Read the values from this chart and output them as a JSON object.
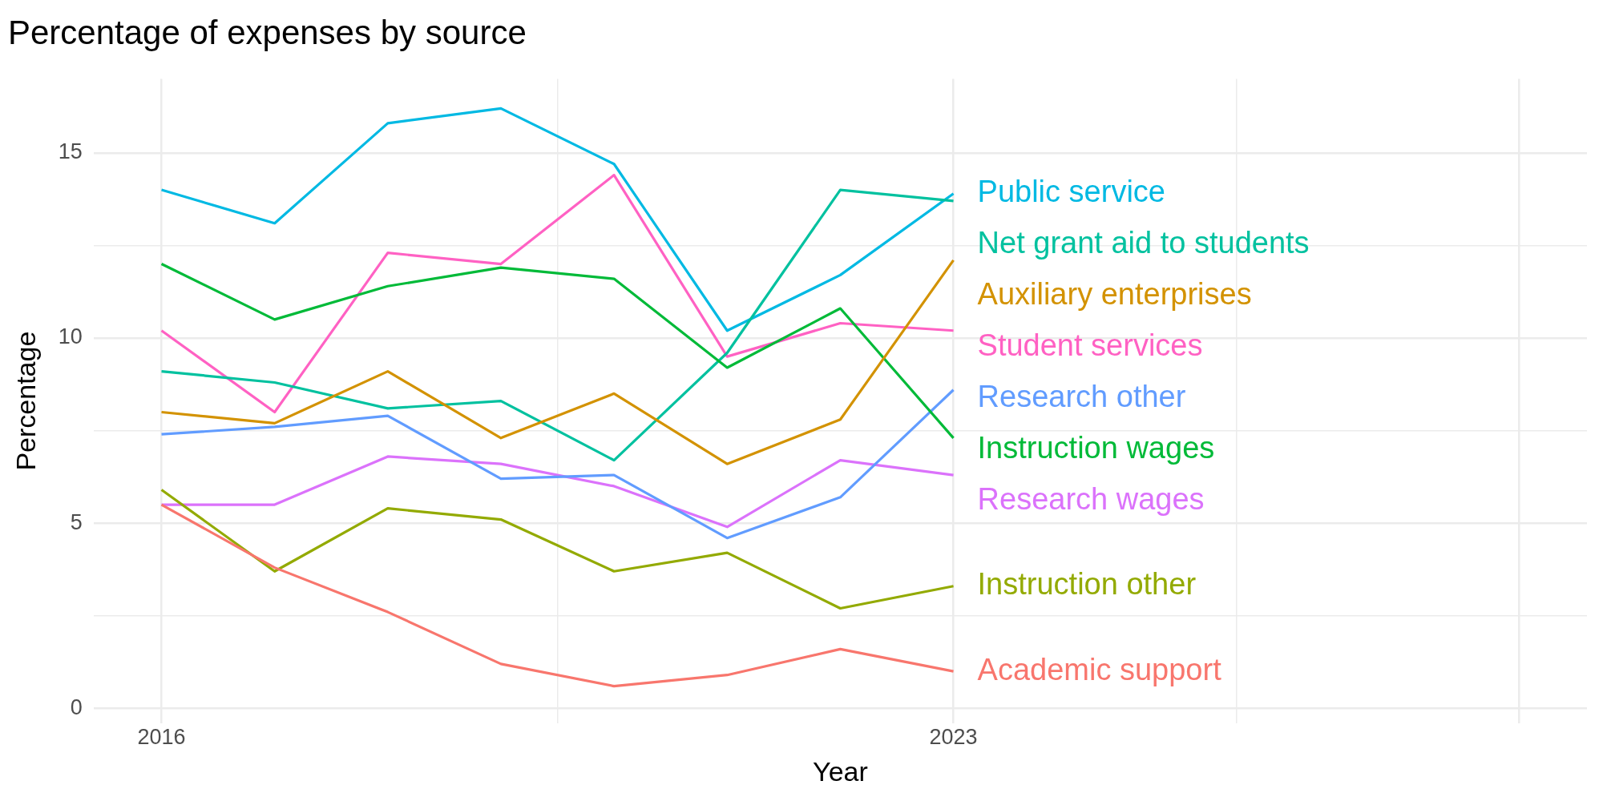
{
  "chart_data": {
    "type": "line",
    "title": "Percentage of expenses by source",
    "xlabel": "Year",
    "ylabel": "Percentage",
    "x": [
      2016,
      2017,
      2018,
      2019,
      2020,
      2021,
      2022,
      2023
    ],
    "series": [
      {
        "name": "Academic support",
        "color": "#f8766d",
        "values": [
          5.5,
          3.8,
          2.6,
          1.2,
          0.6,
          0.9,
          1.6,
          1.0
        ]
      },
      {
        "name": "Auxiliary enterprises",
        "color": "#d39200",
        "values": [
          8.0,
          7.7,
          9.1,
          7.3,
          8.5,
          6.6,
          7.8,
          12.1
        ]
      },
      {
        "name": "Instruction other",
        "color": "#93aa00",
        "values": [
          5.9,
          3.7,
          5.4,
          5.1,
          3.7,
          4.2,
          2.7,
          3.3
        ]
      },
      {
        "name": "Instruction wages",
        "color": "#00ba38",
        "values": [
          12.0,
          10.5,
          11.4,
          11.9,
          11.6,
          9.2,
          10.8,
          7.3
        ]
      },
      {
        "name": "Net grant aid to students",
        "color": "#00c19f",
        "values": [
          9.1,
          8.8,
          8.1,
          8.3,
          6.7,
          9.6,
          14.0,
          13.7
        ]
      },
      {
        "name": "Public service",
        "color": "#00b9e3",
        "values": [
          14.0,
          13.1,
          15.8,
          16.2,
          14.7,
          10.2,
          11.7,
          13.9
        ]
      },
      {
        "name": "Research other",
        "color": "#619cff",
        "values": [
          7.4,
          7.6,
          7.9,
          6.2,
          6.3,
          4.6,
          5.7,
          8.6
        ]
      },
      {
        "name": "Research wages",
        "color": "#db72fb",
        "values": [
          5.5,
          5.5,
          6.8,
          6.6,
          6.0,
          4.9,
          6.7,
          6.3
        ]
      },
      {
        "name": "Student services",
        "color": "#ff61c3",
        "values": [
          10.2,
          8.0,
          12.3,
          12.0,
          14.4,
          9.5,
          10.4,
          10.2
        ]
      }
    ],
    "xlim": [
      2015.4,
      2028.6
    ],
    "xticks": [
      2016,
      {
        "value": 2019.5,
        "label": null
      },
      2023,
      {
        "value": 2025.5,
        "label": null
      },
      {
        "value": 2028,
        "label": null
      }
    ],
    "ylim": [
      -0.4,
      17
    ],
    "yticks": [
      0,
      {
        "value": 2.5,
        "label": null
      },
      5,
      {
        "value": 7.5,
        "label": null
      },
      10,
      {
        "value": 12.5,
        "label": null
      },
      15
    ],
    "grid": true,
    "legend": false,
    "marker": "none",
    "line_style": "solid"
  }
}
